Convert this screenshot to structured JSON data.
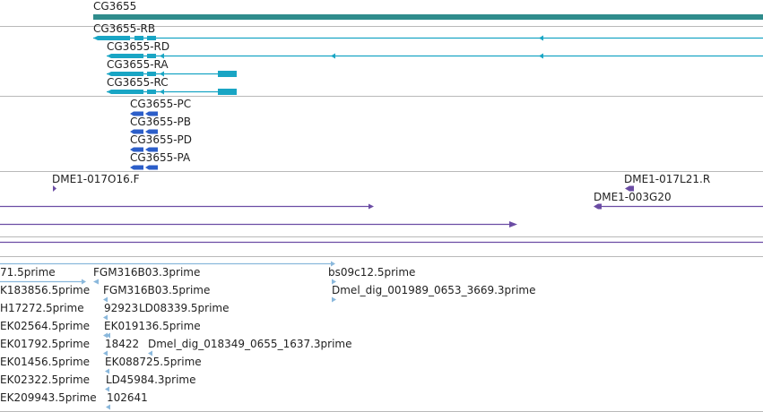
{
  "colors": {
    "gene": "#2f8c8c",
    "transcript": "#19a5c4",
    "protein": "#2c5ec9",
    "clone": "#6b4ca4",
    "est": "#8ab8dc",
    "divider": "#b9b9b9"
  },
  "gene_track": {
    "gene_label": "CG3655"
  },
  "transcripts_track": {
    "rb_label": "CG3655-RB",
    "rd_label": "CG3655-RD",
    "ra_label": "CG3655-RA",
    "rc_label": "CG3655-RC"
  },
  "proteins_track": {
    "pc_label": "CG3655-PC",
    "pb_label": "CG3655-PB",
    "pd_label": "CG3655-PD",
    "pa_label": "CG3655-PA"
  },
  "clones_track": {
    "clone1_label": "DME1-017O16.F",
    "clone2_label": "DME1-017L21.R",
    "clone3_label": "DME1-003G20"
  },
  "est_track": {
    "c1": [
      "71.5prime",
      "K183856.5prime",
      "H17272.5prime",
      "EK02564.5prime",
      "EK01792.5prime",
      "EK01456.5prime",
      "EK02322.5prime",
      "EK209943.5prime"
    ],
    "c2": [
      "FGM316B03.3prime",
      "FGM316B03.5prime",
      "92923",
      "EK019136.5prime",
      "18422",
      "EK088725.5prime",
      "LD45984.3prime",
      "102641"
    ],
    "c2b": [
      "LD08339.5prime",
      "Dmel_dig_018349_0655_1637.3prime"
    ],
    "c3": [
      "bs09c12.5prime",
      "Dmel_dig_001989_0653_3669.3prime"
    ]
  }
}
